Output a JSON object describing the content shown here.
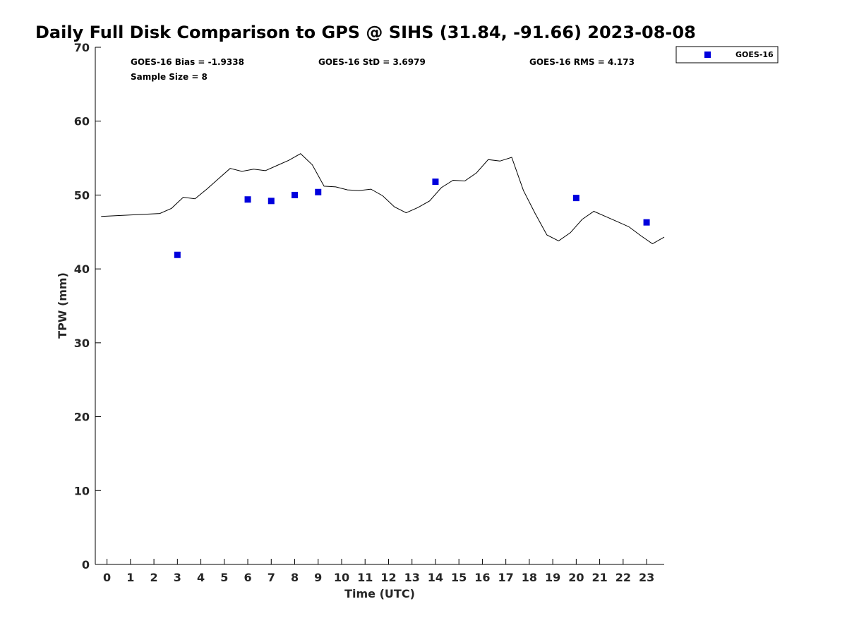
{
  "chart_data": {
    "type": "scatter",
    "title": "Daily Full Disk Comparison to GPS @ SIHS (31.84, -91.66) 2023-08-08",
    "xlabel": "Time (UTC)",
    "ylabel": "TPW (mm)",
    "xlim": [
      -0.5,
      23.75
    ],
    "ylim": [
      0,
      70
    ],
    "xticks": [
      0,
      1,
      2,
      3,
      4,
      5,
      6,
      7,
      8,
      9,
      10,
      11,
      12,
      13,
      14,
      15,
      16,
      17,
      18,
      19,
      20,
      21,
      22,
      23
    ],
    "yticks": [
      0,
      10,
      20,
      30,
      40,
      50,
      60,
      70
    ],
    "grid": false,
    "legend_position": "top-right-outside",
    "stats": {
      "bias": "GOES-16 Bias = -1.9338",
      "std": "GOES-16 StD = 3.6979",
      "rms": "GOES-16 RMS = 4.173",
      "sample": "Sample Size = 8"
    },
    "series": [
      {
        "name": "GOES-16",
        "kind": "scatter",
        "color": "#0000dd",
        "marker": "square",
        "x": [
          3,
          6,
          7,
          8,
          9,
          14,
          20,
          23
        ],
        "y": [
          41.9,
          49.4,
          49.2,
          50.0,
          50.4,
          51.8,
          49.6,
          46.3
        ]
      },
      {
        "kind": "line",
        "color": "#000000",
        "x": [
          -0.25,
          2.25,
          2.75,
          3.25,
          3.75,
          4.25,
          4.75,
          5.25,
          5.75,
          6.25,
          6.75,
          7.25,
          7.75,
          8.25,
          8.75,
          9.25,
          9.75,
          10.25,
          10.75,
          11.25,
          11.75,
          12.25,
          12.75,
          13.25,
          13.75,
          14.25,
          14.75,
          15.25,
          15.75,
          16.25,
          16.75,
          17.25,
          17.75,
          18.25,
          18.75,
          19.25,
          19.75,
          20.25,
          20.75,
          21.25,
          21.75,
          22.25,
          22.75,
          23.25,
          23.75
        ],
        "y": [
          47.1,
          47.5,
          48.2,
          49.7,
          49.5,
          50.8,
          52.2,
          53.6,
          53.2,
          53.5,
          53.3,
          54.0,
          54.7,
          55.6,
          54.1,
          51.2,
          51.1,
          50.7,
          50.6,
          50.8,
          49.9,
          48.4,
          47.6,
          48.3,
          49.2,
          51.0,
          52.0,
          51.9,
          53.0,
          54.8,
          54.6,
          55.1,
          50.6,
          47.5,
          44.6,
          43.8,
          44.9,
          46.7,
          47.8,
          47.1,
          46.4,
          45.7,
          44.5,
          43.4,
          44.3
        ]
      }
    ]
  }
}
